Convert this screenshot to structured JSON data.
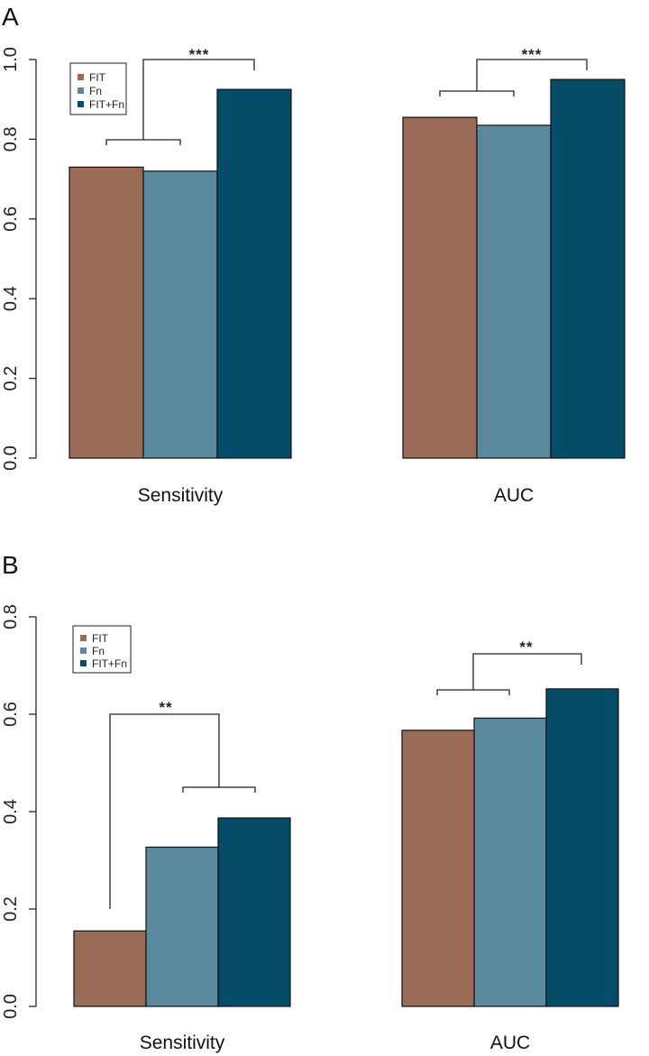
{
  "colors": {
    "FIT": "#9a6b56",
    "Fn": "#5b899e",
    "FIT+Fn": "#044c67"
  },
  "chart_data": [
    {
      "panel": "A",
      "type": "bar",
      "categories": [
        "Sensitivity",
        "AUC"
      ],
      "series": [
        {
          "name": "FIT",
          "values": [
            0.73,
            0.855
          ]
        },
        {
          "name": "Fn",
          "values": [
            0.72,
            0.835
          ]
        },
        {
          "name": "FIT+Fn",
          "values": [
            0.925,
            0.95
          ]
        }
      ],
      "ylim": [
        0,
        1.0
      ],
      "yticks": [
        "0.0",
        "0.2",
        "0.4",
        "0.6",
        "0.8",
        "1.0"
      ],
      "legend": [
        "FIT",
        "Fn",
        "FIT+Fn"
      ],
      "legend_position": "top-left",
      "grid": false,
      "annotations": [
        {
          "category": "Sensitivity",
          "label": "***",
          "compare": "FIT & Fn vs FIT+Fn"
        },
        {
          "category": "AUC",
          "label": "***",
          "compare": "FIT & Fn vs FIT+Fn"
        }
      ]
    },
    {
      "panel": "B",
      "type": "bar",
      "categories": [
        "Sensitivity",
        "AUC"
      ],
      "series": [
        {
          "name": "FIT",
          "values": [
            0.155,
            0.567
          ]
        },
        {
          "name": "Fn",
          "values": [
            0.327,
            0.592
          ]
        },
        {
          "name": "FIT+Fn",
          "values": [
            0.387,
            0.652
          ]
        }
      ],
      "ylim": [
        0,
        0.8
      ],
      "yticks": [
        "0.0",
        "0.2",
        "0.4",
        "0.6",
        "0.8"
      ],
      "legend": [
        "FIT",
        "Fn",
        "FIT+Fn"
      ],
      "legend_position": "top-left",
      "grid": false,
      "annotations": [
        {
          "category": "Sensitivity",
          "label": "**",
          "compare": "FIT vs Fn & FIT+Fn"
        },
        {
          "category": "AUC",
          "label": "**",
          "compare": "FIT & Fn vs FIT+Fn"
        }
      ]
    }
  ]
}
